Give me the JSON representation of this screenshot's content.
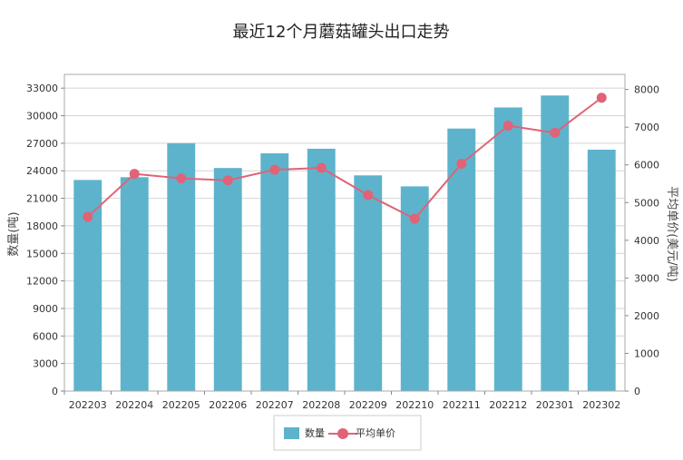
{
  "chart_data": {
    "type": "bar",
    "title": "最近12个月蘑菇罐头出口走势",
    "categories": [
      "202203",
      "202204",
      "202205",
      "202206",
      "202207",
      "202208",
      "202209",
      "202210",
      "202211",
      "202212",
      "202301",
      "202302"
    ],
    "series": [
      {
        "name": "数量",
        "type": "bar",
        "axis": "left",
        "color": "#5eb3cc",
        "values": [
          23000,
          23300,
          27000,
          24300,
          25900,
          26400,
          23500,
          22300,
          28600,
          30900,
          32200,
          26300
        ]
      },
      {
        "name": "平均单价",
        "type": "line",
        "axis": "right",
        "color": "#e06377",
        "values": [
          4620,
          5760,
          5640,
          5590,
          5870,
          5920,
          5200,
          4570,
          6030,
          7040,
          6850,
          7780
        ]
      }
    ],
    "y_left": {
      "label": "数量(吨)",
      "ticks": [
        "0",
        "3000",
        "6000",
        "9000",
        "12000",
        "15000",
        "18000",
        "21000",
        "24000",
        "27000",
        "30000",
        "33000"
      ],
      "range": [
        0,
        34500
      ]
    },
    "y_right": {
      "label": "平均单价(美元/吨)",
      "ticks": [
        "0",
        "1000",
        "2000",
        "3000",
        "4000",
        "5000",
        "6000",
        "7000",
        "8000"
      ],
      "range": [
        0,
        8400
      ]
    },
    "grid": true,
    "legend_position": "bottom"
  }
}
